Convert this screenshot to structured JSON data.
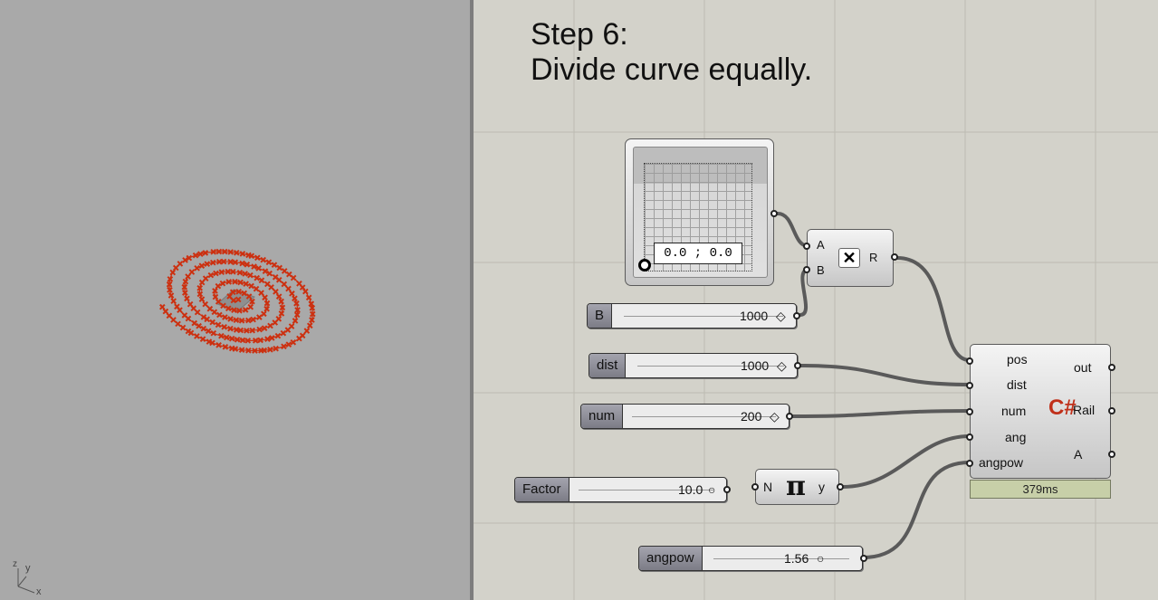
{
  "viewport": {
    "axis_z": "z",
    "axis_y": "y",
    "axis_x": "x",
    "curve_color": "#cc3010"
  },
  "canvas": {
    "step_title": "Step 6:",
    "step_subtitle": "Divide curve equally.",
    "point_pad": {
      "readout": "0.0 ; 0.0"
    },
    "multiply": {
      "input_a": "A",
      "input_b": "B",
      "output": "R",
      "icon": "multiply-icon"
    },
    "sliders": {
      "b": {
        "label": "B",
        "value": "1000",
        "marker": "◇"
      },
      "dist": {
        "label": "dist",
        "value": "1000",
        "marker": "◇"
      },
      "num": {
        "label": "num",
        "value": "200",
        "marker": "◇"
      },
      "factor": {
        "label": "Factor",
        "value": "10.0",
        "marker": "○"
      },
      "angpow": {
        "label": "angpow",
        "value": "1.56",
        "marker": "○"
      }
    },
    "pi": {
      "input": "N",
      "symbol": "π",
      "output": "y"
    },
    "csharp": {
      "inputs": [
        "pos",
        "dist",
        "num",
        "ang",
        "angpow"
      ],
      "outputs": [
        "out",
        "Rail",
        "A"
      ],
      "icon_text": "C#",
      "timer": "379ms"
    }
  }
}
